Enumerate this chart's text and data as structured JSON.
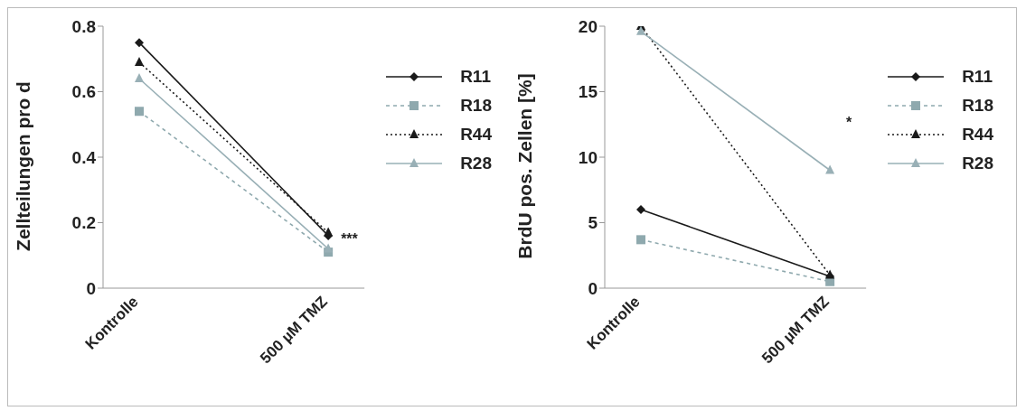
{
  "chart_data": [
    {
      "type": "line",
      "ylabel": "Zellteilungen pro d",
      "categories": [
        "Kontrolle",
        "500 µM TMZ"
      ],
      "ylim": [
        0,
        0.8
      ],
      "yticks": [
        0,
        0.2,
        0.4,
        0.6,
        0.8
      ],
      "grid": false,
      "legend": "right",
      "annotations": [
        {
          "text": "***",
          "x": "500 µM TMZ",
          "y": 0.15
        }
      ],
      "series": [
        {
          "name": "R11",
          "color": "#1a1a1a",
          "values": [
            0.75,
            0.16
          ],
          "marker": "diamond",
          "line_style": "solid"
        },
        {
          "name": "R18",
          "color": "#8fa9ae",
          "values": [
            0.54,
            0.11
          ],
          "marker": "square",
          "line_style": "dashed"
        },
        {
          "name": "R44",
          "color": "#1a1a1a",
          "values": [
            0.69,
            0.17
          ],
          "marker": "triangle",
          "line_style": "dotted"
        },
        {
          "name": "R28",
          "color": "#99b0b6",
          "values": [
            0.64,
            0.12
          ],
          "marker": "triangle",
          "line_style": "solid"
        }
      ]
    },
    {
      "type": "line",
      "ylabel": "BrdU pos. Zellen [%]",
      "categories": [
        "Kontrolle",
        "500 µM TMZ"
      ],
      "ylim": [
        0,
        20
      ],
      "yticks": [
        0,
        5,
        10,
        15,
        20
      ],
      "grid": false,
      "legend": "right",
      "annotations": [
        "*"
      ],
      "series": [
        {
          "name": "R11",
          "color": "#1a1a1a",
          "values": [
            6,
            0.9
          ],
          "marker": "diamond",
          "line_style": "solid"
        },
        {
          "name": "R18",
          "color": "#8fa9ae",
          "values": [
            3.7,
            0.5
          ],
          "marker": "square",
          "line_style": "dashed"
        },
        {
          "name": "R44",
          "color": "#1a1a1a",
          "values": [
            20,
            1.0
          ],
          "marker": "triangle",
          "line_style": "dotted"
        },
        {
          "name": "R28",
          "color": "#99b0b6",
          "values": [
            19.6,
            9
          ],
          "marker": "triangle",
          "line_style": "solid"
        }
      ]
    }
  ]
}
